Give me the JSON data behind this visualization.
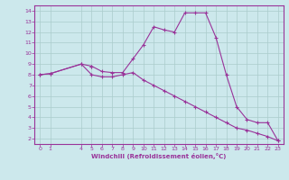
{
  "line1_x": [
    0,
    1,
    4,
    5,
    5,
    6,
    7,
    8,
    9,
    10,
    11,
    12,
    13,
    14,
    15,
    16,
    17,
    18,
    19,
    20,
    21,
    22,
    23
  ],
  "line1_y": [
    8.0,
    8.1,
    9.0,
    8.8,
    8.8,
    8.3,
    8.2,
    8.2,
    9.5,
    10.8,
    12.5,
    12.2,
    12.0,
    13.8,
    13.8,
    13.8,
    11.5,
    8.0,
    5.0,
    3.8,
    3.5,
    3.5,
    1.8
  ],
  "line2_x": [
    0,
    1,
    4,
    5,
    6,
    7,
    8,
    9,
    10,
    11,
    12,
    13,
    14,
    15,
    16,
    17,
    18,
    19,
    20,
    21,
    22,
    23
  ],
  "line2_y": [
    8.0,
    8.1,
    9.0,
    8.0,
    7.8,
    7.8,
    8.0,
    8.2,
    7.5,
    7.0,
    6.5,
    6.0,
    5.5,
    5.0,
    4.5,
    4.0,
    3.5,
    3.0,
    2.8,
    2.5,
    2.2,
    1.8
  ],
  "line_color": "#993399",
  "bg_color": "#cce8ec",
  "grid_color": "#aacccc",
  "xlabel": "Windchill (Refroidissement éolien,°C)",
  "ylim": [
    1.5,
    14.5
  ],
  "xlim": [
    -0.5,
    23.5
  ],
  "yticks": [
    2,
    3,
    4,
    5,
    6,
    7,
    8,
    9,
    10,
    11,
    12,
    13,
    14
  ],
  "xticks": [
    0,
    1,
    4,
    5,
    6,
    7,
    8,
    9,
    10,
    11,
    12,
    13,
    14,
    15,
    16,
    17,
    18,
    19,
    20,
    21,
    22,
    23
  ],
  "all_xticks": [
    0,
    1,
    2,
    3,
    4,
    5,
    6,
    7,
    8,
    9,
    10,
    11,
    12,
    13,
    14,
    15,
    16,
    17,
    18,
    19,
    20,
    21,
    22,
    23
  ]
}
